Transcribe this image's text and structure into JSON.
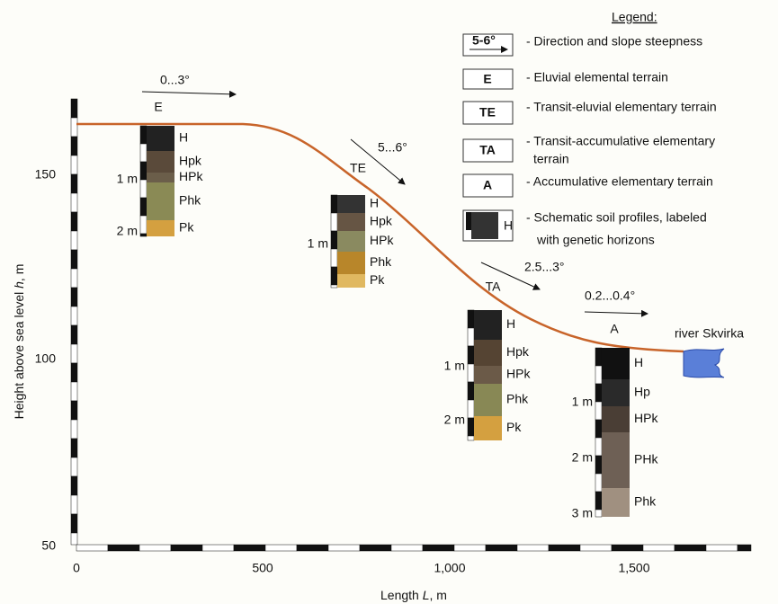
{
  "legend": {
    "title": "Legend:",
    "items": [
      {
        "symbol": "5-6°",
        "text": "- Direction and slope steepness"
      },
      {
        "symbol": "E",
        "text": "- Eluvial elemental terrain"
      },
      {
        "symbol": "TE",
        "text": "- Transit-eluvial elementary terrain"
      },
      {
        "symbol": "TA",
        "text": [
          "- Transit-accumulative elementary",
          "terrain"
        ]
      },
      {
        "symbol": "A",
        "text": "- Accumulative elementary terrain"
      },
      {
        "symbol": "H",
        "text": [
          "- Schematic soil profiles, labeled",
          "with genetic horizons"
        ]
      }
    ]
  },
  "y_axis": {
    "title": "Height above sea level",
    "symbol": "h",
    "unit": ", m",
    "ticks": [
      "150",
      "100",
      "50"
    ]
  },
  "x_axis": {
    "title": "Length",
    "symbol": "L",
    "unit": ", m",
    "ticks": [
      "0",
      "500",
      "1,000",
      "1,500"
    ]
  },
  "slopes": [
    {
      "angle": "0...3°",
      "terrain": "E"
    },
    {
      "angle": "5...6°",
      "terrain": "TE"
    },
    {
      "angle": "2.5...3°",
      "terrain": "TA"
    },
    {
      "angle": "0.2...0.4°",
      "terrain": "A"
    }
  ],
  "river": "river Skvirka",
  "profiles": [
    {
      "horizons": [
        "H",
        "Hpk",
        "HPk",
        "Phk",
        "Pk"
      ],
      "depths": [
        "1 m",
        "2 m"
      ]
    },
    {
      "horizons": [
        "H",
        "Hpk",
        "HPk",
        "Phk",
        "Pk"
      ],
      "depths": [
        "1 m"
      ]
    },
    {
      "horizons": [
        "H",
        "Hpk",
        "HPk",
        "Phk",
        "Pk"
      ],
      "depths": [
        "1 m",
        "2 m"
      ]
    },
    {
      "horizons": [
        "H",
        "Hp",
        "HPk",
        "PHk",
        "Phk"
      ],
      "depths": [
        "1 m",
        "2 m",
        "3 m"
      ]
    }
  ]
}
